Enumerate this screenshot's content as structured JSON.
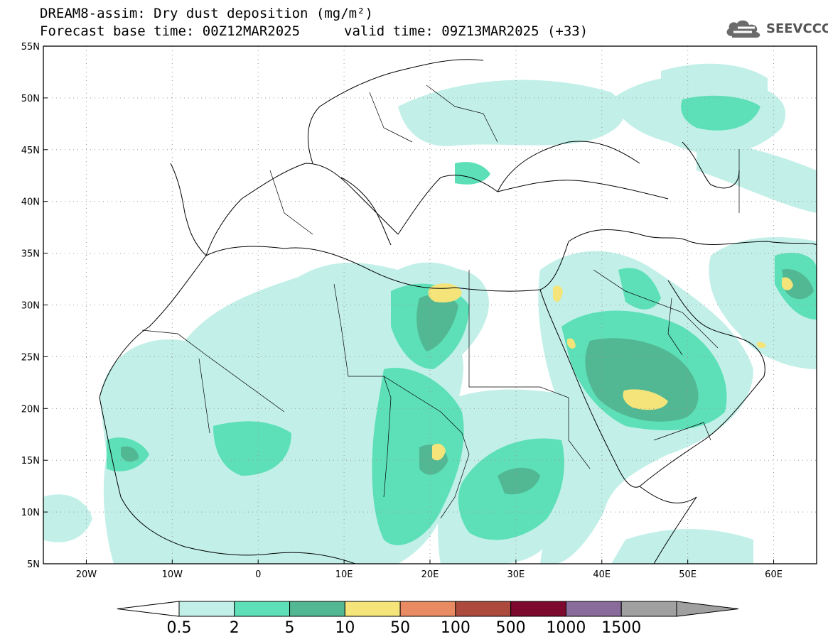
{
  "title": {
    "line1": "DREAM8-assim: Dry dust deposition (mg/m²)",
    "line2": "Forecast base time: 00Z12MAR2025",
    "valid": "valid time: 09Z13MAR2025 (+33)"
  },
  "logo": {
    "text": "SEEVCCC",
    "icon": "cloud-icon"
  },
  "axes": {
    "lon_min": -25,
    "lon_max": 65,
    "lat_min": 5,
    "lat_max": 55,
    "x_ticks": [
      {
        "v": -20,
        "label": "20W"
      },
      {
        "v": -10,
        "label": "10W"
      },
      {
        "v": 0,
        "label": "0"
      },
      {
        "v": 10,
        "label": "10E"
      },
      {
        "v": 20,
        "label": "20E"
      },
      {
        "v": 30,
        "label": "30E"
      },
      {
        "v": 40,
        "label": "40E"
      },
      {
        "v": 50,
        "label": "50E"
      },
      {
        "v": 60,
        "label": "60E"
      }
    ],
    "y_ticks": [
      {
        "v": 55,
        "label": "55N"
      },
      {
        "v": 50,
        "label": "50N"
      },
      {
        "v": 45,
        "label": "45N"
      },
      {
        "v": 40,
        "label": "40N"
      },
      {
        "v": 35,
        "label": "35N"
      },
      {
        "v": 30,
        "label": "30N"
      },
      {
        "v": 25,
        "label": "25N"
      },
      {
        "v": 20,
        "label": "20N"
      },
      {
        "v": 15,
        "label": "15N"
      },
      {
        "v": 10,
        "label": "10N"
      },
      {
        "v": 5,
        "label": "5N"
      }
    ],
    "grid": "dotted"
  },
  "colorbar": {
    "levels": [
      "0.5",
      "2",
      "5",
      "10",
      "50",
      "100",
      "500",
      "1000",
      "1500"
    ],
    "colors": [
      "#c2f0e8",
      "#5de0b8",
      "#52b893",
      "#f4e47a",
      "#e88a62",
      "#ad4a3e",
      "#7d0a2e",
      "#8a6c9c",
      "#a0a0a0"
    ]
  }
}
